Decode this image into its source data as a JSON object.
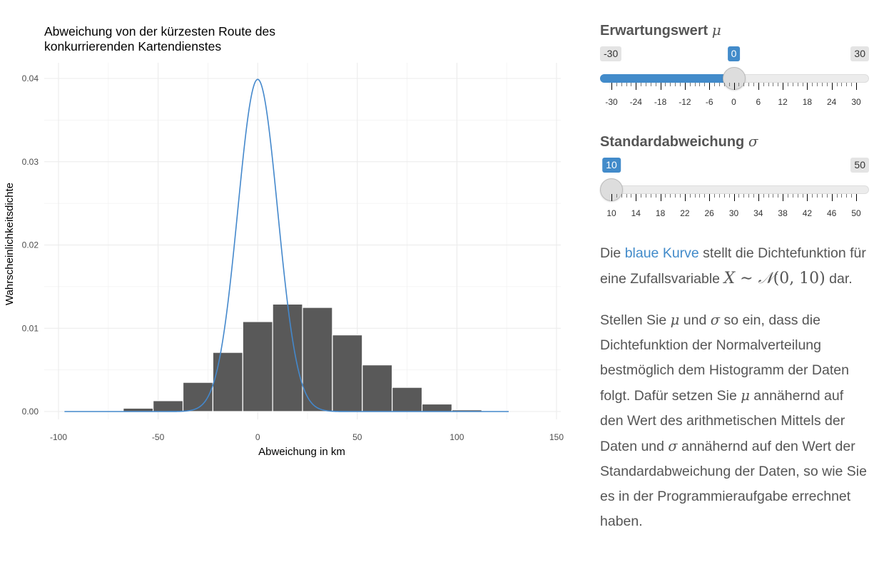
{
  "chart_data": {
    "type": "bar",
    "title": "Abweichung von der kürzesten Route des\nkonkurrierenden Kartendienstes",
    "title_lines": [
      "Abweichung von der kürzesten Route des",
      "konkurrierenden Kartendienstes"
    ],
    "xlabel": "Abweichung in km",
    "ylabel": "Wahrscheinlichkeitsdichte",
    "xlim": [
      -100,
      150
    ],
    "ylim": [
      0,
      0.04
    ],
    "x_ticks": [
      -100,
      -50,
      0,
      50,
      100,
      150
    ],
    "x_tick_labels": [
      "-100",
      "-50",
      "0",
      "50",
      "100",
      "150"
    ],
    "y_ticks": [
      0.0,
      0.01,
      0.02,
      0.03,
      0.04
    ],
    "y_tick_labels": [
      "0.00",
      "0.01",
      "0.02",
      "0.03",
      "0.04"
    ],
    "grid": true,
    "bar_color": "#595959",
    "curve_color": "#4488cc",
    "histogram": {
      "bin_edges": [
        -67.5,
        -52.5,
        -37.5,
        -22.5,
        -7.5,
        7.5,
        22.5,
        37.5,
        52.5,
        67.5,
        82.5,
        97.5,
        112.5
      ],
      "density": [
        0.0004,
        0.0013,
        0.0035,
        0.0071,
        0.0108,
        0.0129,
        0.0125,
        0.0092,
        0.0056,
        0.0029,
        0.0009,
        0.0002
      ]
    },
    "curve": {
      "name": "Normalverteilung",
      "mu": 0,
      "sigma": 10,
      "x_range": [
        -97,
        126
      ]
    }
  },
  "sliders": {
    "mu": {
      "label": "Erwartungswert",
      "symbol": "μ",
      "min": -30,
      "max": 30,
      "value": 0,
      "min_label": "-30",
      "max_label": "30",
      "value_label": "0",
      "tick_labels": [
        "-30",
        "-24",
        "-18",
        "-12",
        "-6",
        "0",
        "6",
        "12",
        "18",
        "24",
        "30"
      ],
      "fill_from_min": true
    },
    "sigma": {
      "label": "Standardabweichung",
      "symbol": "σ",
      "min": 10,
      "max": 50,
      "value": 10,
      "min_label": "10",
      "max_label": "50",
      "value_label": "10",
      "tick_labels": [
        "10",
        "14",
        "18",
        "22",
        "26",
        "30",
        "34",
        "38",
        "42",
        "46",
        "50"
      ],
      "fill_from_min": false
    }
  },
  "description": {
    "p1_pre": "Die ",
    "p1_link": "blaue Kurve",
    "p1_mid": " stellt die Dichtefunktion für eine Zufallsvariable ",
    "p1_math_X": "X",
    "p1_math_sim": " ∼ ",
    "p1_math_N": "𝒩",
    "p1_math_args": "(0, 10)",
    "p1_post": " dar.",
    "p2_a": "Stellen Sie ",
    "p2_mu": "μ",
    "p2_b": " und ",
    "p2_sigma": "σ",
    "p2_c": " so ein, dass die Dichtefunktion der Normalverteilung bestmöglich dem Histogramm der Daten folgt. Dafür setzen Sie ",
    "p2_mu2": "μ",
    "p2_d": " annähernd auf den Wert des arithmetischen Mittels der Daten und ",
    "p2_sigma2": "σ",
    "p2_e": " annähernd auf den Wert der Standardabweichung der Daten, so wie Sie es in der Programmieraufgabe errechnet haben."
  }
}
